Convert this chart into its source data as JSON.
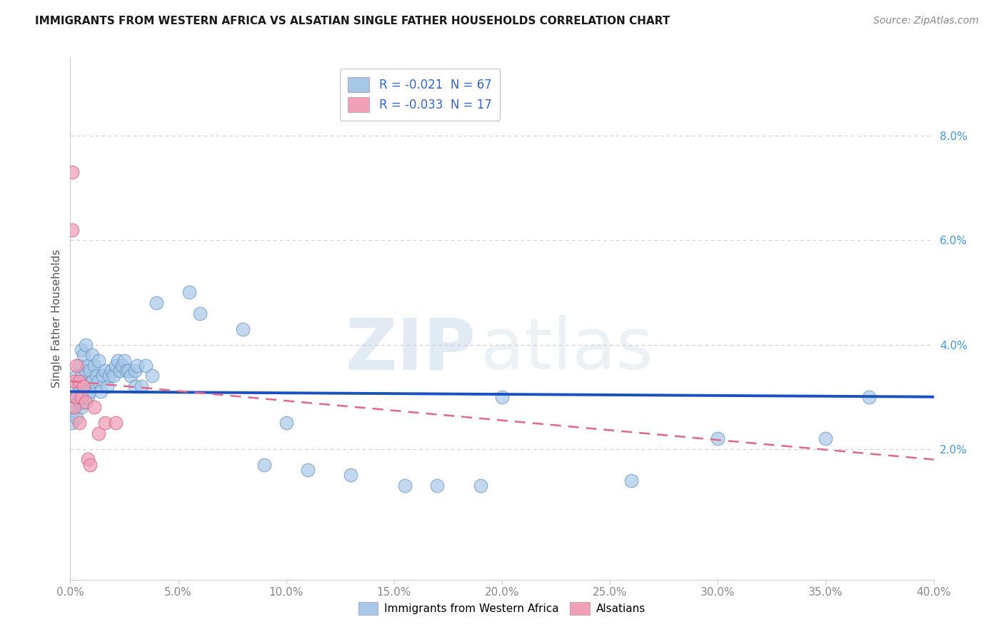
{
  "title": "IMMIGRANTS FROM WESTERN AFRICA VS ALSATIAN SINGLE FATHER HOUSEHOLDS CORRELATION CHART",
  "source": "Source: ZipAtlas.com",
  "ylabel": "Single Father Households",
  "watermark_zip": "ZIP",
  "watermark_atlas": "atlas",
  "blue_R": -0.021,
  "blue_N": 67,
  "pink_R": -0.033,
  "pink_N": 17,
  "blue_color": "#a8c8e8",
  "pink_color": "#f0a0b8",
  "blue_edge_color": "#6090c0",
  "pink_edge_color": "#d06080",
  "blue_line_color": "#1a50c0",
  "pink_line_color": "#e06888",
  "xlim": [
    0,
    0.4
  ],
  "ylim": [
    -0.005,
    0.095
  ],
  "xtick_values": [
    0.0,
    0.05,
    0.1,
    0.15,
    0.2,
    0.25,
    0.3,
    0.35,
    0.4
  ],
  "ytick_right_values": [
    0.02,
    0.04,
    0.06,
    0.08
  ],
  "blue_line_x": [
    0.0,
    0.4
  ],
  "blue_line_y": [
    0.031,
    0.03
  ],
  "pink_line_x": [
    0.0,
    0.4
  ],
  "pink_line_y": [
    0.033,
    0.018
  ],
  "blue_points_x": [
    0.001,
    0.001,
    0.001,
    0.002,
    0.002,
    0.003,
    0.003,
    0.003,
    0.004,
    0.004,
    0.004,
    0.005,
    0.005,
    0.005,
    0.006,
    0.006,
    0.006,
    0.007,
    0.007,
    0.007,
    0.008,
    0.008,
    0.009,
    0.009,
    0.01,
    0.01,
    0.011,
    0.012,
    0.013,
    0.013,
    0.014,
    0.015,
    0.016,
    0.017,
    0.018,
    0.019,
    0.02,
    0.021,
    0.022,
    0.023,
    0.024,
    0.025,
    0.026,
    0.027,
    0.028,
    0.03,
    0.03,
    0.031,
    0.033,
    0.035,
    0.038,
    0.04,
    0.055,
    0.06,
    0.08,
    0.09,
    0.1,
    0.11,
    0.13,
    0.155,
    0.17,
    0.19,
    0.2,
    0.26,
    0.3,
    0.35,
    0.37
  ],
  "blue_points_y": [
    0.03,
    0.027,
    0.025,
    0.032,
    0.028,
    0.034,
    0.03,
    0.026,
    0.036,
    0.032,
    0.029,
    0.039,
    0.034,
    0.028,
    0.038,
    0.033,
    0.029,
    0.04,
    0.035,
    0.031,
    0.036,
    0.03,
    0.035,
    0.031,
    0.038,
    0.033,
    0.036,
    0.034,
    0.037,
    0.033,
    0.031,
    0.034,
    0.035,
    0.032,
    0.034,
    0.035,
    0.034,
    0.036,
    0.037,
    0.035,
    0.036,
    0.037,
    0.035,
    0.035,
    0.034,
    0.035,
    0.032,
    0.036,
    0.032,
    0.036,
    0.034,
    0.048,
    0.05,
    0.046,
    0.043,
    0.017,
    0.025,
    0.016,
    0.015,
    0.013,
    0.013,
    0.013,
    0.03,
    0.014,
    0.022,
    0.022,
    0.03
  ],
  "pink_points_x": [
    0.001,
    0.001,
    0.002,
    0.002,
    0.003,
    0.003,
    0.004,
    0.004,
    0.005,
    0.006,
    0.007,
    0.008,
    0.009,
    0.011,
    0.013,
    0.016,
    0.021
  ],
  "pink_points_y": [
    0.073,
    0.062,
    0.033,
    0.028,
    0.036,
    0.03,
    0.025,
    0.033,
    0.03,
    0.032,
    0.029,
    0.018,
    0.017,
    0.028,
    0.023,
    0.025,
    0.025
  ],
  "legend_label_blue": "Immigrants from Western Africa",
  "legend_label_pink": "Alsatians",
  "background_color": "#ffffff",
  "grid_color": "#cccccc",
  "title_color": "#1a1a1a",
  "source_color": "#888888",
  "tick_label_color": "#888888",
  "right_tick_color": "#4499dd"
}
